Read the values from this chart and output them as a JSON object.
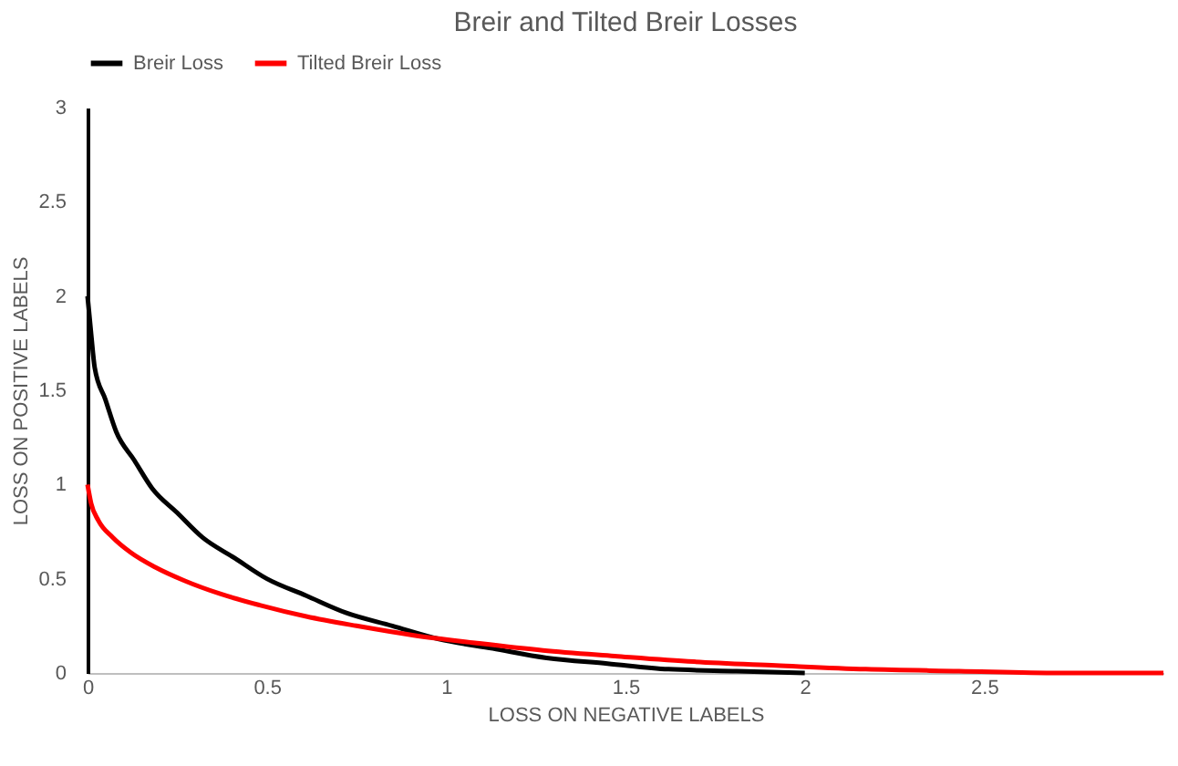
{
  "chart_data": {
    "type": "line",
    "title": "Breir and Tilted Breir Losses",
    "xlabel": "LOSS ON NEGATIVE LABELS",
    "ylabel": "LOSS ON POSITIVE LABELS",
    "xlim": [
      0,
      3
    ],
    "xticks": [
      0,
      0.5,
      1,
      1.5,
      2,
      2.5
    ],
    "ylim": [
      0,
      3
    ],
    "yticks": [
      0,
      0.5,
      1,
      1.5,
      2,
      2.5,
      3
    ],
    "grid": false,
    "legend": "top",
    "marker": "none",
    "line_style": "solid",
    "series": [
      {
        "name": "Breir Loss",
        "color": "#000000",
        "x": [
          0,
          0.01,
          0.02,
          0.05,
          0.08,
          0.13,
          0.18,
          0.25,
          0.32,
          0.41,
          0.5,
          0.61,
          0.72,
          0.85,
          0.98,
          1.13,
          1.28,
          1.45,
          1.62,
          1.81,
          2
        ],
        "values": [
          2,
          1.8,
          1.62,
          1.45,
          1.28,
          1.13,
          0.98,
          0.85,
          0.72,
          0.61,
          0.5,
          0.41,
          0.32,
          0.25,
          0.18,
          0.13,
          0.08,
          0.05,
          0.02,
          0.01,
          0
        ]
      },
      {
        "name": "Tilted Breir Loss",
        "color": "#ff0000",
        "x": [
          0,
          0.01,
          0.03,
          0.07,
          0.12,
          0.19,
          0.27,
          0.37,
          0.48,
          0.61,
          0.75,
          0.91,
          1.08,
          1.27,
          1.47,
          1.69,
          1.92,
          2.17,
          2.43,
          2.71,
          3
        ],
        "values": [
          1,
          0.9,
          0.81,
          0.72,
          0.64,
          0.56,
          0.49,
          0.42,
          0.36,
          0.3,
          0.25,
          0.2,
          0.16,
          0.12,
          0.09,
          0.06,
          0.04,
          0.02,
          0.01,
          0,
          0
        ]
      }
    ]
  }
}
